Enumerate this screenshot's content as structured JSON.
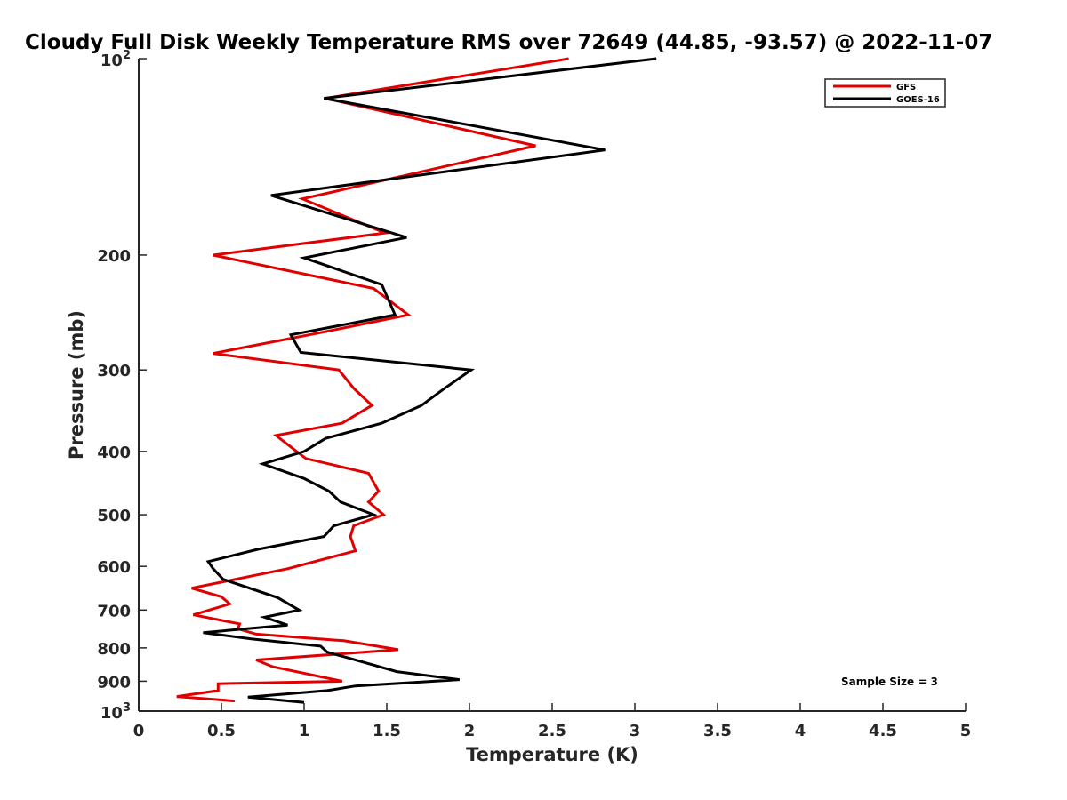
{
  "chart_data": {
    "type": "line",
    "title": "Cloudy Full Disk Weekly Temperature RMS over 72649 (44.85, -93.57) @ 2022-11-07",
    "xlabel": "Temperature (K)",
    "ylabel": "Pressure (mb)",
    "xlim": [
      0,
      5
    ],
    "ylim": [
      100,
      1000
    ],
    "y_scale": "log",
    "y_reversed": true,
    "x_ticks": [
      "0",
      "0.5",
      "1",
      "1.5",
      "2",
      "2.5",
      "3",
      "3.5",
      "4",
      "4.5",
      "5"
    ],
    "y_ticks": [
      {
        "value": 100,
        "base": "10",
        "exp": "2"
      },
      {
        "value": 200,
        "label": "200"
      },
      {
        "value": 300,
        "label": "300"
      },
      {
        "value": 400,
        "label": "400"
      },
      {
        "value": 500,
        "label": "500"
      },
      {
        "value": 600,
        "label": "600"
      },
      {
        "value": 700,
        "label": "700"
      },
      {
        "value": 800,
        "label": "800"
      },
      {
        "value": 900,
        "label": "900"
      },
      {
        "value": 1000,
        "base": "10",
        "exp": "3"
      }
    ],
    "grid": false,
    "legend_position": "top-right",
    "annotation": "Sample Size = 3",
    "series": [
      {
        "name": "GFS",
        "color": "#e00000",
        "points": [
          [
            2.6,
            100
          ],
          [
            1.13,
            115
          ],
          [
            2.4,
            136
          ],
          [
            0.99,
            164
          ],
          [
            1.49,
            185
          ],
          [
            0.45,
            200
          ],
          [
            1.42,
            225
          ],
          [
            1.63,
            247
          ],
          [
            1.1,
            263
          ],
          [
            0.45,
            283
          ],
          [
            1.21,
            300
          ],
          [
            1.3,
            320
          ],
          [
            1.41,
            340
          ],
          [
            1.23,
            362
          ],
          [
            0.83,
            378
          ],
          [
            1.01,
            410
          ],
          [
            1.39,
            432
          ],
          [
            1.45,
            460
          ],
          [
            1.39,
            478
          ],
          [
            1.48,
            500
          ],
          [
            1.3,
            520
          ],
          [
            1.28,
            540
          ],
          [
            1.31,
            568
          ],
          [
            0.9,
            605
          ],
          [
            0.32,
            648
          ],
          [
            0.5,
            668
          ],
          [
            0.55,
            685
          ],
          [
            0.33,
            712
          ],
          [
            0.61,
            735
          ],
          [
            0.6,
            748
          ],
          [
            0.71,
            762
          ],
          [
            1.24,
            780
          ],
          [
            1.57,
            805
          ],
          [
            0.71,
            835
          ],
          [
            0.81,
            855
          ],
          [
            1.23,
            900
          ],
          [
            0.48,
            908
          ],
          [
            0.48,
            930
          ],
          [
            0.23,
            950
          ],
          [
            0.58,
            965
          ]
        ]
      },
      {
        "name": "GOES-16",
        "color": "#000000",
        "points": [
          [
            3.13,
            100
          ],
          [
            1.12,
            115
          ],
          [
            2.82,
            138
          ],
          [
            0.8,
            162
          ],
          [
            1.62,
            188
          ],
          [
            1.0,
            202
          ],
          [
            1.47,
            222
          ],
          [
            1.55,
            247
          ],
          [
            0.92,
            265
          ],
          [
            0.98,
            282
          ],
          [
            2.01,
            300
          ],
          [
            1.85,
            320
          ],
          [
            1.71,
            340
          ],
          [
            1.47,
            362
          ],
          [
            1.13,
            382
          ],
          [
            1.0,
            400
          ],
          [
            0.75,
            418
          ],
          [
            1.0,
            440
          ],
          [
            1.15,
            460
          ],
          [
            1.22,
            478
          ],
          [
            1.42,
            500
          ],
          [
            1.18,
            520
          ],
          [
            1.12,
            540
          ],
          [
            0.72,
            565
          ],
          [
            0.42,
            590
          ],
          [
            0.45,
            605
          ],
          [
            0.51,
            628
          ],
          [
            0.84,
            670
          ],
          [
            0.97,
            700
          ],
          [
            0.76,
            718
          ],
          [
            0.9,
            738
          ],
          [
            0.39,
            758
          ],
          [
            0.68,
            775
          ],
          [
            1.1,
            795
          ],
          [
            1.14,
            812
          ],
          [
            1.42,
            850
          ],
          [
            1.56,
            870
          ],
          [
            1.94,
            895
          ],
          [
            1.31,
            915
          ],
          [
            1.14,
            930
          ],
          [
            0.66,
            952
          ],
          [
            1.0,
            970
          ]
        ]
      }
    ]
  }
}
